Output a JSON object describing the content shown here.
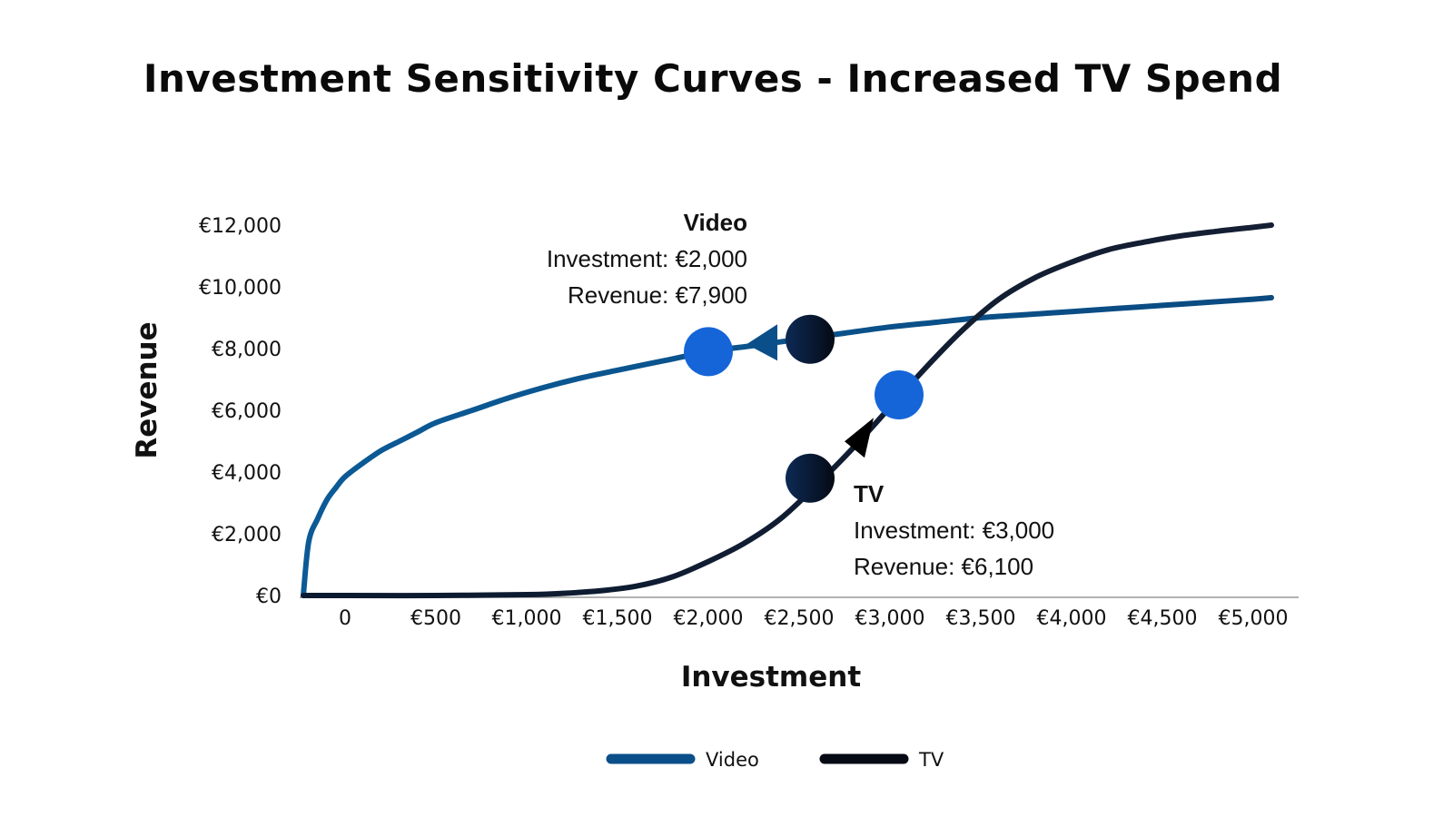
{
  "colors": {
    "video": "#0b4f8a",
    "tv": "#101828",
    "marker_bright": "#1565d8",
    "marker_dark_from": "#0d2a55",
    "marker_dark_to": "#050a14",
    "axis": "#999999"
  },
  "chart_data": {
    "type": "line",
    "title": "Investment Sensitivity Curves - Increased TV Spend",
    "xlabel": "Investment",
    "ylabel": "Revenue",
    "x_tick_labels": [
      "0",
      "€500",
      "€1,000",
      "€1,500",
      "€2,000",
      "€2,500",
      "€3,000",
      "€3,500",
      "€4,000",
      "€4,500",
      "€5,000"
    ],
    "y_tick_labels": [
      "€0",
      "€2,000",
      "€4,000",
      "€6,000",
      "€8,000",
      "€10,000",
      "€12,000"
    ],
    "xlim": [
      -250,
      5250
    ],
    "ylim": [
      0,
      12000
    ],
    "legend_position": "bottom",
    "series": [
      {
        "name": "Video",
        "points": [
          [
            -230,
            0
          ],
          [
            -200,
            1750
          ],
          [
            -150,
            2500
          ],
          [
            -100,
            3100
          ],
          [
            -50,
            3500
          ],
          [
            0,
            3850
          ],
          [
            100,
            4300
          ],
          [
            200,
            4700
          ],
          [
            300,
            5000
          ],
          [
            400,
            5300
          ],
          [
            500,
            5600
          ],
          [
            700,
            6000
          ],
          [
            900,
            6400
          ],
          [
            1100,
            6750
          ],
          [
            1300,
            7050
          ],
          [
            1500,
            7300
          ],
          [
            1750,
            7600
          ],
          [
            2000,
            7900
          ],
          [
            2250,
            8100
          ],
          [
            2500,
            8300
          ],
          [
            2750,
            8500
          ],
          [
            3000,
            8700
          ],
          [
            3250,
            8850
          ],
          [
            3500,
            9000
          ],
          [
            3750,
            9100
          ],
          [
            4000,
            9200
          ],
          [
            4250,
            9300
          ],
          [
            4500,
            9400
          ],
          [
            4750,
            9500
          ],
          [
            5000,
            9600
          ],
          [
            5100,
            9650
          ]
        ]
      },
      {
        "name": "TV",
        "points": [
          [
            -230,
            0
          ],
          [
            0,
            0
          ],
          [
            500,
            0
          ],
          [
            1000,
            30
          ],
          [
            1200,
            70
          ],
          [
            1400,
            150
          ],
          [
            1600,
            300
          ],
          [
            1800,
            600
          ],
          [
            2000,
            1100
          ],
          [
            2200,
            1700
          ],
          [
            2400,
            2500
          ],
          [
            2600,
            3600
          ],
          [
            2800,
            4800
          ],
          [
            3000,
            6100
          ],
          [
            3200,
            7400
          ],
          [
            3400,
            8600
          ],
          [
            3600,
            9600
          ],
          [
            3800,
            10300
          ],
          [
            4000,
            10800
          ],
          [
            4200,
            11200
          ],
          [
            4400,
            11450
          ],
          [
            4600,
            11650
          ],
          [
            4800,
            11800
          ],
          [
            5000,
            11930
          ],
          [
            5100,
            12000
          ]
        ]
      }
    ],
    "markers": [
      {
        "series": "Video",
        "x": 2000,
        "y": 7900,
        "style": "bright"
      },
      {
        "series": "Video",
        "x": 2560,
        "y": 8300,
        "style": "dark"
      },
      {
        "series": "TV",
        "x": 2560,
        "y": 3800,
        "style": "dark"
      },
      {
        "series": "TV",
        "x": 3050,
        "y": 6500,
        "style": "bright"
      }
    ],
    "arrows": [
      {
        "series": "Video",
        "x": 2320,
        "y": 8200,
        "direction": "left"
      },
      {
        "series": "TV",
        "x": 2840,
        "y": 5050,
        "direction": "up"
      }
    ],
    "annotations": [
      {
        "id": "video",
        "header": "Video",
        "line1": "Investment: €2,000",
        "line2": "Revenue: €7,900"
      },
      {
        "id": "tv",
        "header": "TV",
        "line1": "Investment: €3,000",
        "line2": "Revenue: €6,100"
      }
    ],
    "legend": [
      {
        "name": "Video",
        "color": "#0b4f8a"
      },
      {
        "name": "TV",
        "color": "#050a14"
      }
    ]
  }
}
